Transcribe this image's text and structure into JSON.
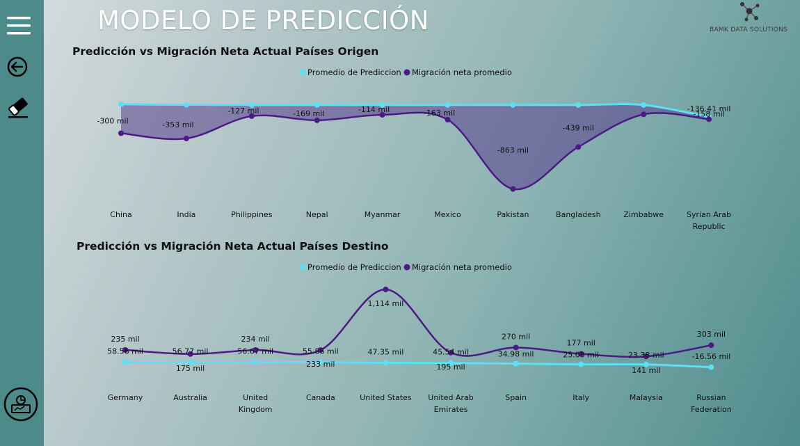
{
  "app": {
    "title": "MODELO DE PREDICCIÓN",
    "logo_text": "BAMK DATA SOLUTIONS"
  },
  "sidebar": {
    "items": [
      {
        "icon": "hamburger-menu-icon"
      },
      {
        "icon": "back-arrow-icon"
      },
      {
        "icon": "eraser-icon"
      },
      {
        "icon": "analytics-icon"
      }
    ]
  },
  "colors": {
    "prediction": "#5de0f5",
    "actual": "#4b1a84",
    "area_fill": "#5a3f8e"
  },
  "chart_data": [
    {
      "type": "line",
      "title": "Predicción vs Migración Neta Actual Países Origen",
      "legend": [
        "Promedio de Prediccion",
        "Migración neta promedio"
      ],
      "legend_position": "top-center",
      "categories": [
        [
          "China"
        ],
        [
          "India"
        ],
        [
          "Philippines"
        ],
        [
          "Nepal"
        ],
        [
          "Myanmar"
        ],
        [
          "Mexico"
        ],
        [
          "Pakistan"
        ],
        [
          "Bangladesh"
        ],
        [
          "Zimbabwe"
        ],
        [
          "Syrian Arab",
          "Republic"
        ]
      ],
      "series": [
        {
          "name": "Promedio de Prediccion",
          "values": [
            -7,
            -12,
            -14,
            -14,
            -14,
            -14,
            -14,
            -14,
            -14,
            -136.41
          ],
          "labels": [
            "",
            "",
            "",
            "",
            "",
            "",
            "",
            "",
            "",
            "-136.41 mil"
          ]
        },
        {
          "name": "Migración neta promedio",
          "values": [
            -300,
            -353,
            -127,
            -169,
            -114,
            -163,
            -863,
            -439,
            -109,
            -158
          ],
          "labels": [
            "-300 mil",
            "-353 mil",
            "-127 mil",
            "-169 mil",
            "-114 mil",
            "-163 mil",
            "-863 mil",
            "-439 mil",
            "",
            "-158 mil"
          ]
        }
      ],
      "fill_between": true,
      "grid": false
    },
    {
      "type": "line",
      "title": "Predicción vs Migración Neta Actual Países Destino",
      "legend": [
        "Promedio de Prediccion",
        "Migración neta promedio"
      ],
      "legend_position": "top-center",
      "categories": [
        [
          "Germany"
        ],
        [
          "Australia"
        ],
        [
          "United",
          "Kingdom"
        ],
        [
          "Canada"
        ],
        [
          "United States"
        ],
        [
          "United Arab",
          "Emirates"
        ],
        [
          "Spain"
        ],
        [
          "Italy"
        ],
        [
          "Malaysia"
        ],
        [
          "Russian",
          "Federation"
        ]
      ],
      "series": [
        {
          "name": "Promedio de Prediccion",
          "values": [
            58.56,
            56.77,
            56.67,
            55.86,
            47.35,
            45.54,
            34.98,
            25.08,
            23.38,
            -16.56
          ],
          "labels": [
            "58.56 mil",
            "56.77 mil",
            "56.67 mil",
            "55.86 mil",
            "47.35 mil",
            "45.54 mil",
            "34.98 mil",
            "25.08 mil",
            "23.38 mil",
            "-16.56 mil"
          ]
        },
        {
          "name": "Migración neta promedio",
          "values": [
            235,
            175,
            234,
            233,
            1114,
            195,
            270,
            177,
            141,
            303
          ],
          "labels": [
            "235 mil",
            "175 mil",
            "234 mil",
            "233 mil",
            "1,114 mil",
            "195 mil",
            "270 mil",
            "177 mil",
            "141 mil",
            "303 mil"
          ]
        }
      ],
      "fill_between": false,
      "grid": false
    }
  ]
}
